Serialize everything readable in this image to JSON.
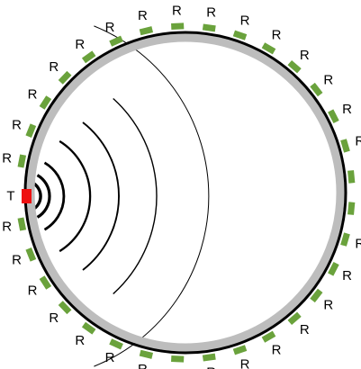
{
  "diagram": {
    "transmitter_label": "T",
    "receiver_label": "R",
    "receiver_count": 32,
    "colors": {
      "background": "#ffffff",
      "outer_ring": "#000000",
      "inner_ring": "#bdbdbd",
      "receiver": "#6aa23c",
      "transmitter": "#ee1111",
      "wavefront": "#000000"
    }
  }
}
